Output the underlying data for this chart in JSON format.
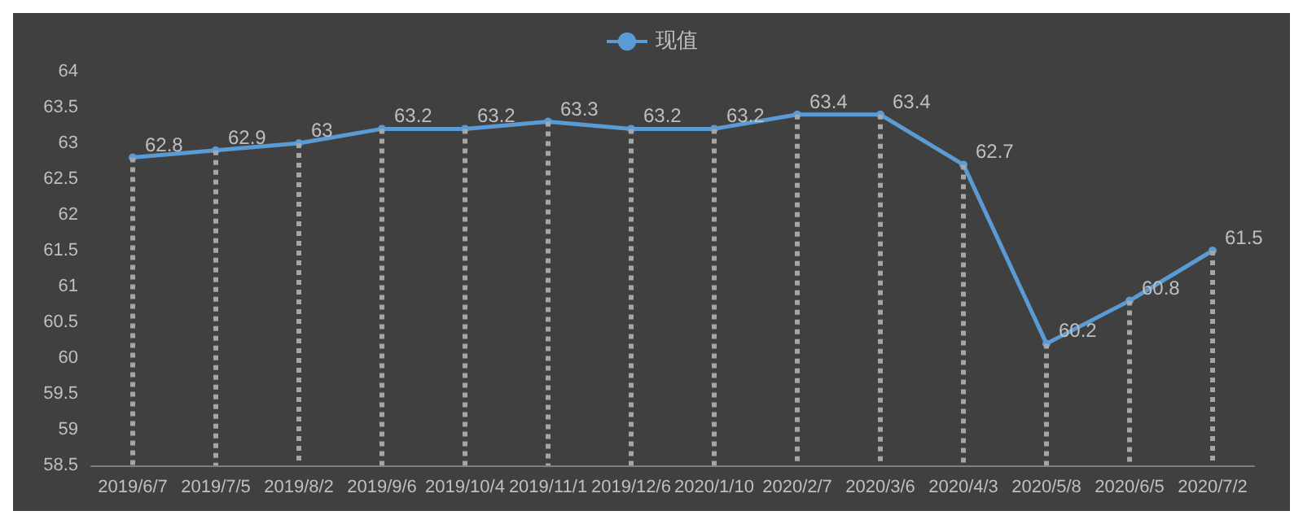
{
  "chart_data": {
    "type": "line",
    "categories": [
      "2019/6/7",
      "2019/7/5",
      "2019/8/2",
      "2019/9/6",
      "2019/10/4",
      "2019/11/1",
      "2019/12/6",
      "2020/1/10",
      "2020/2/7",
      "2020/3/6",
      "2020/4/3",
      "2020/5/8",
      "2020/6/5",
      "2020/7/2"
    ],
    "series": [
      {
        "name": "现值",
        "color": "#5b9bd5",
        "values": [
          62.8,
          62.9,
          63,
          63.2,
          63.2,
          63.3,
          63.2,
          63.2,
          63.4,
          63.4,
          62.7,
          60.2,
          60.8,
          61.5
        ]
      }
    ],
    "ylim": [
      58.5,
      64
    ],
    "yticks": [
      58.5,
      59,
      59.5,
      60,
      60.5,
      61,
      61.5,
      62,
      62.5,
      63,
      63.5,
      64
    ],
    "grid": "x",
    "legend": "top",
    "marker": "circle",
    "data_labels": true
  }
}
